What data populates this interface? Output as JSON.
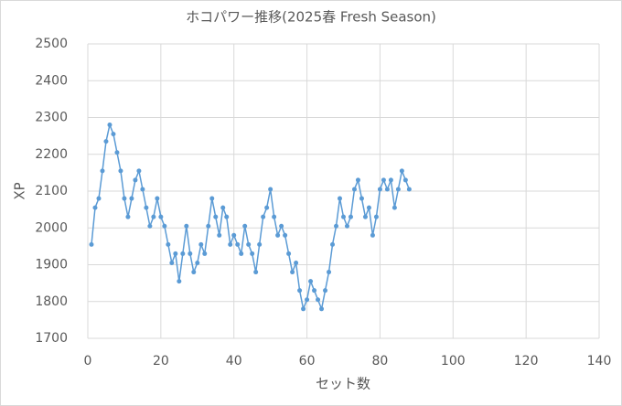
{
  "chart_data": {
    "type": "line",
    "title": "ホコパワー推移(2025春 Fresh Season)",
    "x_label": "セット数",
    "y_label": "XP",
    "x": [
      1,
      2,
      3,
      4,
      5,
      6,
      7,
      8,
      9,
      10,
      11,
      12,
      13,
      14,
      15,
      16,
      17,
      18,
      19,
      20,
      21,
      22,
      23,
      24,
      25,
      26,
      27,
      28,
      29,
      30,
      31,
      32,
      33,
      34,
      35,
      36,
      37,
      38,
      39,
      40,
      41,
      42,
      43,
      44,
      45,
      46,
      47,
      48,
      49,
      50,
      51,
      52,
      53,
      54,
      55,
      56,
      57,
      58,
      59,
      60,
      61,
      62,
      63,
      64,
      65,
      66,
      67,
      68,
      69,
      70,
      71,
      72,
      73,
      74,
      75,
      76,
      77,
      78,
      79,
      80,
      81,
      82,
      83,
      84,
      85,
      86,
      87,
      88
    ],
    "series": [
      {
        "name": "XP",
        "color": "#5b9bd5",
        "values": [
          1955,
          2055,
          2080,
          2155,
          2235,
          2280,
          2255,
          2205,
          2155,
          2080,
          2030,
          2080,
          2130,
          2155,
          2105,
          2055,
          2005,
          2030,
          2080,
          2030,
          2005,
          1955,
          1905,
          1930,
          1855,
          1930,
          2005,
          1930,
          1880,
          1905,
          1955,
          1930,
          2005,
          2080,
          2030,
          1980,
          2055,
          2030,
          1955,
          1980,
          1955,
          1930,
          2005,
          1955,
          1930,
          1880,
          1955,
          2030,
          2055,
          2105,
          2030,
          1980,
          2005,
          1980,
          1930,
          1880,
          1905,
          1830,
          1780,
          1805,
          1855,
          1830,
          1805,
          1780,
          1830,
          1880,
          1955,
          2005,
          2080,
          2030,
          2005,
          2030,
          2105,
          2130,
          2080,
          2030,
          2055,
          1980,
          2030,
          2105,
          2130,
          2105,
          2130,
          2055,
          2105,
          2155,
          2130,
          2105
        ]
      }
    ],
    "xlim": [
      0,
      140
    ],
    "xticks": [
      0,
      20,
      40,
      60,
      80,
      100,
      120,
      140
    ],
    "ylim": [
      1700,
      2500
    ],
    "yticks": [
      1700,
      1800,
      1900,
      2000,
      2100,
      2200,
      2300,
      2400,
      2500
    ],
    "grid": true
  }
}
